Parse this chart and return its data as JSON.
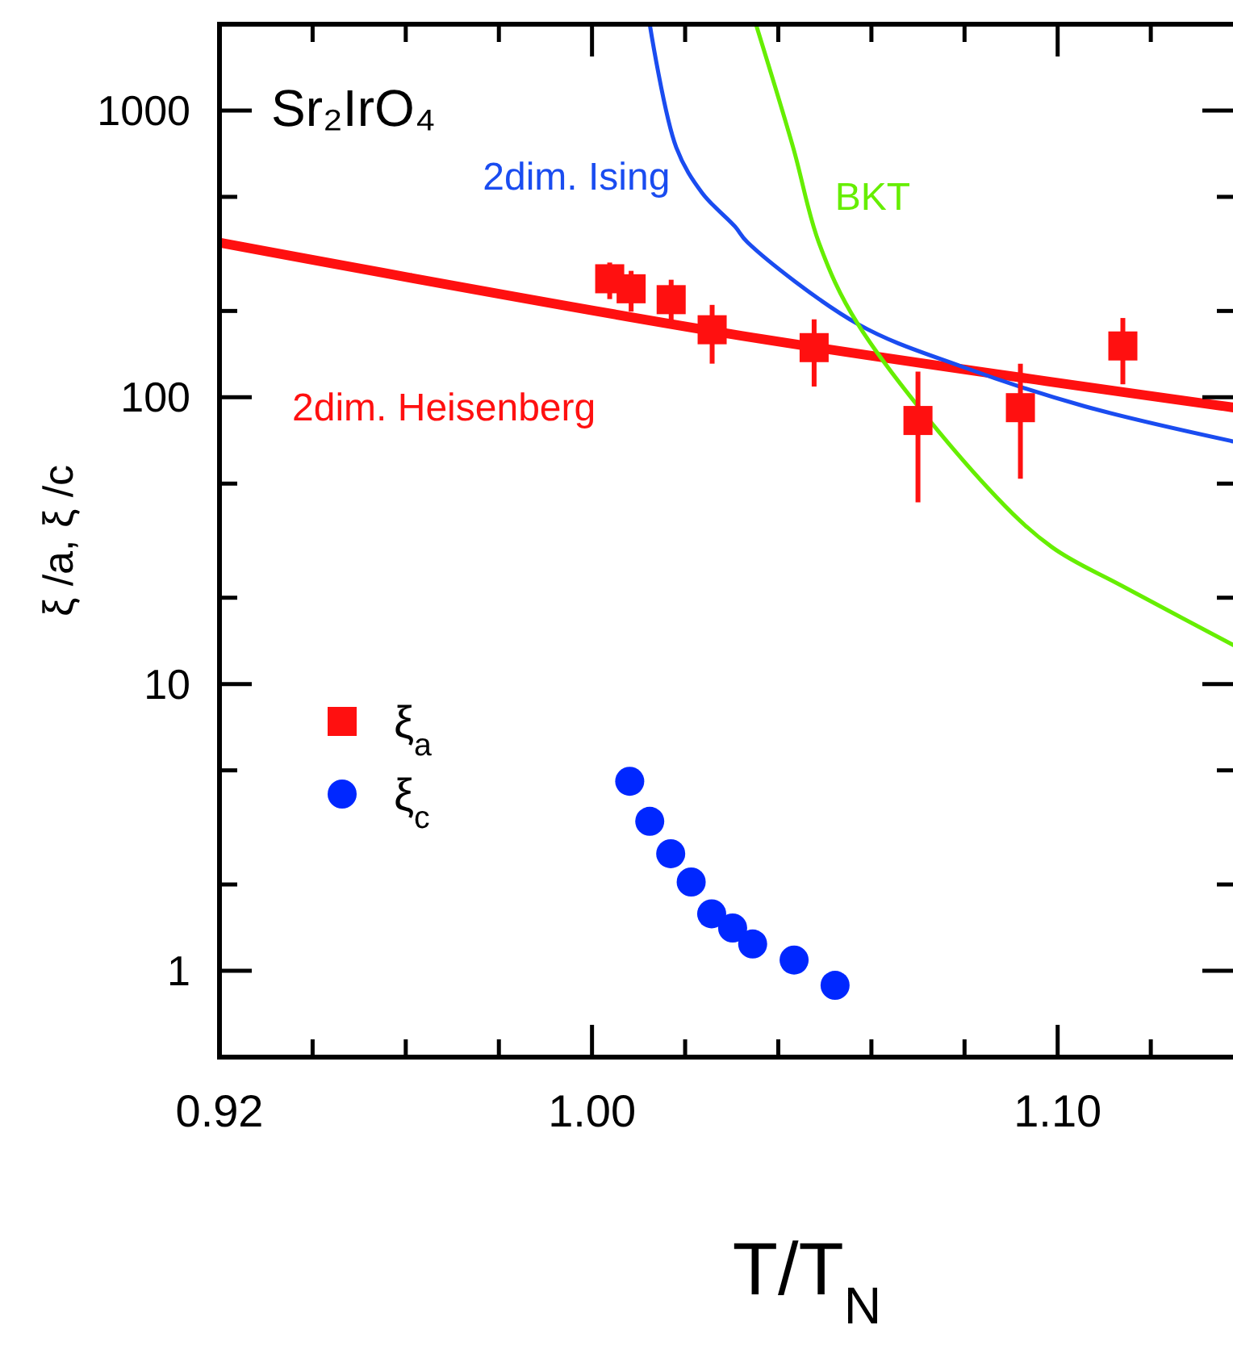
{
  "chart_data": {
    "type": "scatter",
    "xlabel": "T/T$_{N}$",
    "ylabel": "ξ /a, ξ /c",
    "annotations": [
      "Sr₂IrO₄"
    ],
    "xlim": [
      0.92,
      1.138
    ],
    "ylim": [
      0.5,
      2000
    ],
    "log": "y",
    "grid": false,
    "legend": "left",
    "xticks": [
      {
        "value": 0.92,
        "label": "0.92"
      },
      {
        "value": 0.94,
        "label": null
      },
      {
        "value": 0.96,
        "label": null
      },
      {
        "value": 0.98,
        "label": null
      },
      {
        "value": 1,
        "label": "1.00"
      },
      {
        "value": 1.02,
        "label": null
      },
      {
        "value": 1.04,
        "label": null
      },
      {
        "value": 1.06,
        "label": null
      },
      {
        "value": 1.08,
        "label": null
      },
      {
        "value": 1.1,
        "label": "1.10"
      },
      {
        "value": 1.12,
        "label": null
      }
    ],
    "yticks": [
      1,
      {
        "value": 2,
        "label": null
      },
      {
        "value": 5,
        "label": null
      },
      10,
      {
        "value": 20,
        "label": null
      },
      {
        "value": 50,
        "label": null
      },
      100,
      {
        "value": 200,
        "label": null
      },
      {
        "value": 500,
        "label": null
      },
      1000
    ],
    "series": [
      {
        "name": "2dim. Heisenberg",
        "type": "line",
        "color": "#ff1010",
        "line_style": "solid",
        "marker": "none",
        "x": [
          0.92,
          1.03,
          1.138
        ],
        "values": [
          346,
          166,
          92
        ]
      },
      {
        "name": "2dim. Ising",
        "type": "line",
        "color": "#1a4cf0",
        "line_style": "solid",
        "marker": "none",
        "x": [
          1.0124,
          1.0181,
          1.0237,
          1.0307,
          1.0334,
          1.0571,
          1.0794,
          1.1058,
          1.138
        ],
        "values": [
          2000,
          743,
          515,
          394,
          347,
          180,
          128,
          93,
          70
        ]
      },
      {
        "name": "BKT",
        "type": "line",
        "color": "#66ee00",
        "line_style": "solid",
        "marker": "none",
        "x": [
          1.0352,
          1.0432,
          1.0487,
          1.0571,
          1.0849,
          1.0988,
          1.1138,
          1.138
        ],
        "values": [
          2000,
          743,
          347,
          180,
          48.5,
          30,
          22,
          13.6
        ]
      },
      {
        "name": "ξ$_{a}$",
        "color": "#ff1010",
        "marker": "square",
        "x": [
          1.0038,
          1.0084,
          1.017,
          1.0258,
          1.0477,
          1.07,
          1.092,
          1.114
        ],
        "values": [
          259,
          239,
          219,
          172,
          149,
          83,
          92,
          151
        ],
        "errors": [
          [
            220,
            295
          ],
          [
            199,
            276
          ],
          [
            184,
            257
          ],
          [
            131,
            210
          ],
          [
            109,
            187
          ],
          [
            43,
            123
          ],
          [
            52,
            131
          ],
          [
            111,
            189
          ]
        ]
      },
      {
        "name": "ξ$_{c}$",
        "color": "#0027ff",
        "marker": "circle",
        "x": [
          1.0081,
          1.0124,
          1.0169,
          1.0213,
          1.0257,
          1.0302,
          1.0345,
          1.0434,
          1.0522
        ],
        "values": [
          4.58,
          3.32,
          2.56,
          2.04,
          1.58,
          1.41,
          1.24,
          1.09,
          0.89
        ]
      }
    ]
  }
}
